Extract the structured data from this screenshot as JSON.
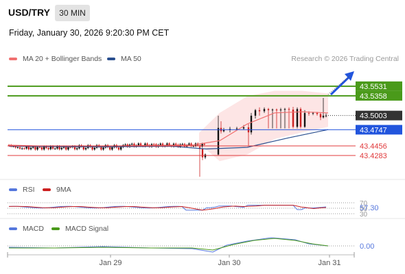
{
  "header": {
    "pair": "USD/TRY",
    "timeframe": "30 MIN",
    "datetime": "Friday, January 30, 2026 9:20:30 PM CET"
  },
  "legend": {
    "ma20": "MA 20 + Bollinger Bands",
    "ma50": "MA 50",
    "rsi": "RSI",
    "rsi_ma": "9MA",
    "macd": "MACD",
    "macd_signal": "MACD Signal"
  },
  "research": "Research © 2026 Trading Central",
  "colors": {
    "up": "#111111",
    "down": "#cc2020",
    "resistance": "#4a9a1a",
    "support": "#e0393b",
    "pivot": "#2255dd",
    "ma20": "#f07070",
    "ma50": "#2a4f8f",
    "bollinger_fill": "#fde0e0",
    "rsi": "#5577dd",
    "rsi_ma": "#cc2020",
    "macd": "#5577dd",
    "macd_signal": "#4a9a1a"
  },
  "chart_data": {
    "type": "candlestick",
    "price_ylim": [
      43.39,
      43.59
    ],
    "x_ticks": [
      "Jan 29",
      "Jan 30",
      "Jan 31"
    ],
    "levels": [
      {
        "value": "43.5531",
        "label": "43.5531",
        "kind": "resistance",
        "style": "box"
      },
      {
        "value": "43.5358",
        "label": "43.5358",
        "kind": "resistance",
        "style": "box"
      },
      {
        "value": "43.5003",
        "label": "43.5003",
        "kind": "last",
        "style": "box"
      },
      {
        "value": "43.4747",
        "label": "43.4747",
        "kind": "pivot",
        "style": "box"
      },
      {
        "value": "43.4456",
        "label": "43.4456",
        "kind": "support",
        "style": "text"
      },
      {
        "value": "43.4283",
        "label": "43.4283",
        "kind": "support",
        "style": "text"
      }
    ],
    "rsi": {
      "value_label": "57.30",
      "ylim": [
        20,
        80
      ],
      "level_labels": [
        "70",
        "50",
        "30"
      ]
    },
    "macd": {
      "value_label": "0.00"
    }
  }
}
